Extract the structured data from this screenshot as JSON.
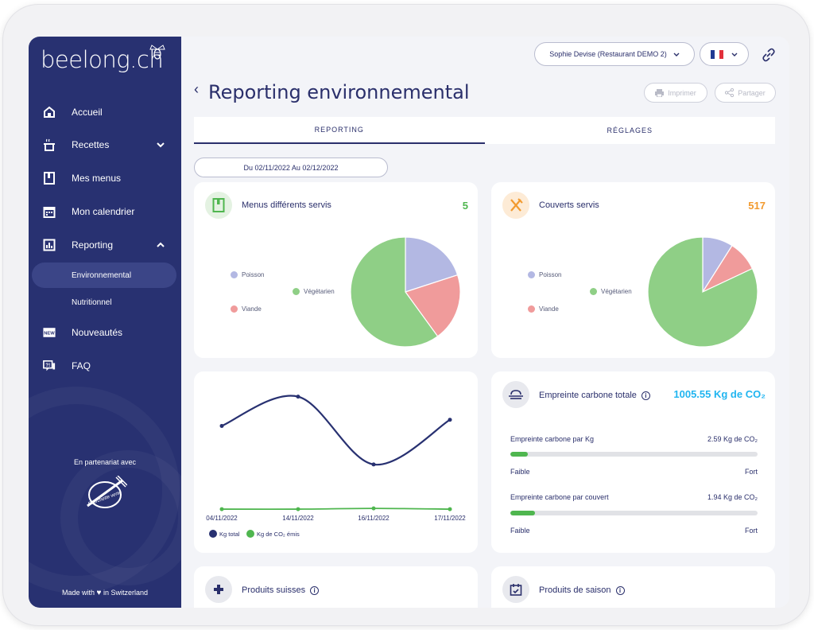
{
  "sidebar": {
    "logo": "beelong.ch",
    "items": [
      {
        "label": "Accueil"
      },
      {
        "label": "Recettes"
      },
      {
        "label": "Mes menus"
      },
      {
        "label": "Mon calendrier"
      },
      {
        "label": "Reporting"
      },
      {
        "label": "Nouveautés"
      },
      {
        "label": "FAQ"
      }
    ],
    "sub_items": [
      {
        "label": "Environnemental"
      },
      {
        "label": "Nutritionnel"
      }
    ],
    "partner_text": "En partenariat avec",
    "partner_logo_text": "Fourchette verte",
    "made_with_prefix": "Made with",
    "made_with_suffix": "in Switzerland"
  },
  "header": {
    "user": "Sophie Devise (Restaurant DEMO 2)",
    "title": "Reporting environnemental",
    "print_label": "Imprimer",
    "share_label": "Partager"
  },
  "tabs": [
    {
      "label": "REPORTING"
    },
    {
      "label": "RÉGLAGES"
    }
  ],
  "date_range": "Du 02/11/2022 Au 02/12/2022",
  "menus_card": {
    "title": "Menus différents servis",
    "value": "5",
    "legend": [
      "Poisson",
      "Végétarien",
      "Viande"
    ]
  },
  "couverts_card": {
    "title": "Couverts servis",
    "value": "517",
    "legend": [
      "Poisson",
      "Végétarien",
      "Viande"
    ]
  },
  "carbon_card": {
    "title": "Empreinte carbone totale",
    "value": "1005.55 Kg de CO₂",
    "rows": [
      {
        "label": "Empreinte carbone par Kg",
        "value": "2.59 Kg de CO₂",
        "low": "Faible",
        "high": "Fort",
        "level": 0.07
      },
      {
        "label": "Empreinte carbone par couvert",
        "value": "1.94 Kg de CO₂",
        "low": "Faible",
        "high": "Fort",
        "level": 0.1
      }
    ]
  },
  "swiss_card": {
    "title": "Produits suisses"
  },
  "season_card": {
    "title": "Produits de saison"
  },
  "colors": {
    "poisson": "#b3b8e3",
    "vegetarien": "#8fcf86",
    "viande": "#f09b9b",
    "sidebar": "#283171",
    "kg_total": "#283171",
    "kg_co2": "#4fb64f"
  },
  "chart_data": [
    {
      "type": "pie",
      "title": "Menus différents servis",
      "labels": [
        "Poisson",
        "Végétarien",
        "Viande"
      ],
      "values": [
        20,
        60,
        20
      ]
    },
    {
      "type": "pie",
      "title": "Couverts servis",
      "labels": [
        "Poisson",
        "Végétarien",
        "Viande"
      ],
      "values": [
        9,
        82,
        9
      ]
    },
    {
      "type": "line",
      "x": [
        "04/11/2022",
        "14/11/2022",
        "16/11/2022",
        "17/11/2022"
      ],
      "series": [
        {
          "name": "Kg total",
          "values": [
            110,
            148,
            60,
            118
          ]
        },
        {
          "name": "Kg de CO₂ émis",
          "values": [
            2,
            2,
            3,
            2
          ]
        }
      ],
      "ylim": [
        0,
        160
      ]
    }
  ]
}
